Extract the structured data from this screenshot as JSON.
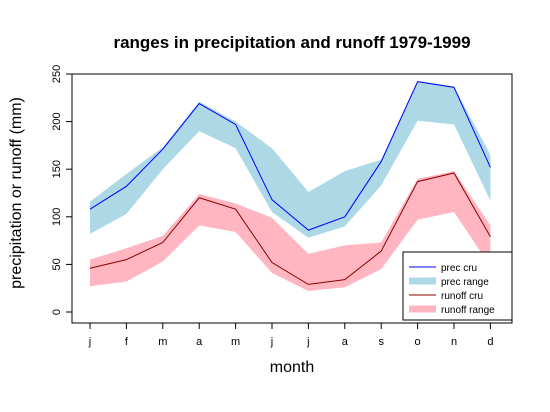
{
  "chart_data": {
    "type": "area",
    "title": "ranges in precipitation and runoff 1979-1999",
    "xlabel": "month",
    "ylabel": "precipitation or runoff (mm)",
    "categories": [
      "j",
      "f",
      "m",
      "a",
      "m",
      "j",
      "j",
      "a",
      "s",
      "o",
      "n",
      "d"
    ],
    "ylim": [
      0,
      250
    ],
    "yticks": [
      0,
      50,
      100,
      150,
      200,
      250
    ],
    "grid": false,
    "legend_position": "bottom-right",
    "series": [
      {
        "name": "prec range",
        "kind": "band",
        "color": "#add8e6",
        "lower": [
          82,
          103,
          150,
          190,
          172,
          105,
          78,
          90,
          133,
          201,
          197,
          117
        ],
        "upper": [
          116,
          145,
          173,
          221,
          200,
          172,
          126,
          148,
          160,
          243,
          237,
          165
        ]
      },
      {
        "name": "runoff range",
        "kind": "band",
        "color": "#ffb6c1",
        "lower": [
          27,
          32,
          53,
          91,
          84,
          41,
          22,
          26,
          45,
          97,
          105,
          48
        ],
        "upper": [
          55,
          67,
          80,
          124,
          114,
          99,
          61,
          70,
          73,
          140,
          148,
          91
        ]
      },
      {
        "name": "prec cru",
        "kind": "line",
        "color": "#0000ff",
        "values": [
          108,
          132,
          171,
          219,
          197,
          118,
          86,
          100,
          158,
          242,
          236,
          152
        ]
      },
      {
        "name": "runoff cru",
        "kind": "line",
        "color": "#8b0000",
        "values": [
          46,
          55,
          73,
          120,
          108,
          52,
          29,
          34,
          64,
          137,
          146,
          79
        ]
      }
    ]
  }
}
